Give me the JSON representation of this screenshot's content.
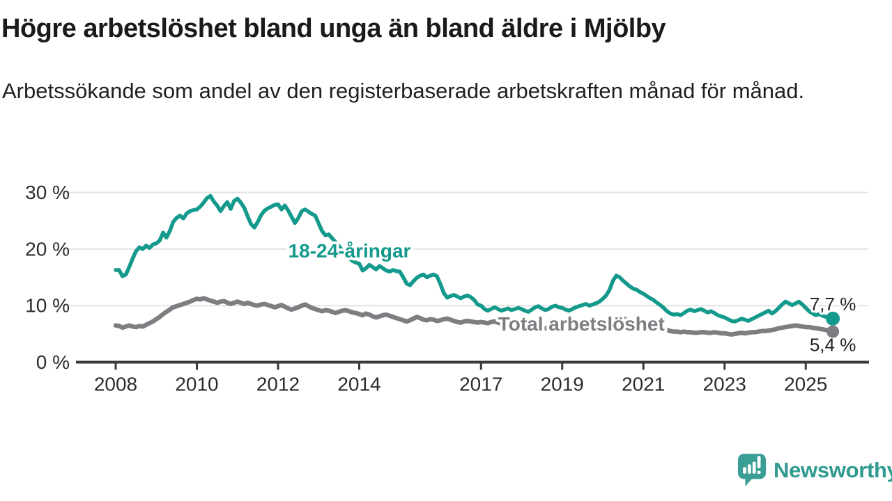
{
  "header": {
    "title": "Högre arbetslöshet bland unga än bland äldre i Mjölby",
    "subtitle": "Arbetssökande som andel av den registerbaserade arbetskraften månad för månad."
  },
  "chart_data": {
    "type": "line",
    "title": "Högre arbetslöshet bland unga än bland äldre i Mjölby",
    "x_start": "2008-01",
    "x_end": "2025-09",
    "frequency": "monthly",
    "y_unit": "%",
    "ylim": [
      0,
      31
    ],
    "grid": "horizontal",
    "x_ticks": [
      2008,
      2010,
      2012,
      2014,
      2017,
      2019,
      2021,
      2023,
      2025
    ],
    "y_ticks": [
      {
        "value": 30,
        "label": "30 %"
      },
      {
        "value": 20,
        "label": "20 %"
      },
      {
        "value": 10,
        "label": "10 %"
      },
      {
        "value": 0,
        "label": "0 %"
      }
    ],
    "series": [
      {
        "name": "Total arbetslöshet",
        "color": "#7e7d82",
        "label": {
          "text": "Total arbetslöshet",
          "x_year": 2017.42,
          "pct_baseline": 5.6
        },
        "end_value": 5.4,
        "end_label": "5,4 %",
        "end_label_side": "below",
        "values": [
          6.5,
          6.4,
          6.1,
          6.3,
          6.5,
          6.3,
          6.2,
          6.4,
          6.3,
          6.6,
          6.9,
          7.2,
          7.6,
          8.0,
          8.5,
          8.9,
          9.3,
          9.7,
          9.9,
          10.1,
          10.3,
          10.5,
          10.7,
          11.0,
          11.2,
          11.1,
          11.3,
          11.1,
          10.9,
          10.7,
          10.5,
          10.7,
          10.8,
          10.5,
          10.3,
          10.5,
          10.7,
          10.5,
          10.3,
          10.5,
          10.3,
          10.1,
          10.0,
          10.2,
          10.3,
          10.1,
          9.9,
          9.7,
          9.9,
          10.1,
          9.8,
          9.5,
          9.3,
          9.5,
          9.7,
          10.0,
          10.2,
          9.9,
          9.6,
          9.4,
          9.2,
          9.0,
          9.2,
          9.1,
          8.9,
          8.7,
          8.9,
          9.1,
          9.2,
          9.0,
          8.8,
          8.7,
          8.5,
          8.3,
          8.6,
          8.4,
          8.1,
          7.9,
          8.1,
          8.3,
          8.4,
          8.2,
          8.0,
          7.8,
          7.6,
          7.4,
          7.2,
          7.4,
          7.7,
          8.0,
          7.8,
          7.5,
          7.4,
          7.6,
          7.5,
          7.3,
          7.4,
          7.6,
          7.7,
          7.5,
          7.3,
          7.1,
          7.0,
          7.2,
          7.3,
          7.2,
          7.1,
          7.0,
          7.1,
          7.0,
          6.9,
          7.1,
          7.2,
          7.0,
          6.8,
          6.6,
          6.5,
          6.6,
          6.5,
          6.4,
          6.4,
          6.3,
          6.2,
          6.1,
          6.0,
          5.9,
          5.9,
          6.0,
          6.1,
          6.0,
          5.9,
          5.9,
          5.8,
          5.8,
          5.7,
          5.7,
          5.8,
          5.9,
          6.0,
          6.0,
          6.1,
          6.2,
          6.2,
          6.3,
          6.4,
          6.6,
          7.0,
          7.5,
          7.8,
          7.8,
          7.7,
          7.5,
          7.3,
          7.1,
          7.0,
          6.9,
          6.8,
          6.6,
          6.5,
          6.3,
          6.2,
          6.0,
          5.8,
          5.7,
          5.5,
          5.4,
          5.4,
          5.3,
          5.4,
          5.3,
          5.3,
          5.2,
          5.2,
          5.3,
          5.3,
          5.2,
          5.2,
          5.3,
          5.2,
          5.1,
          5.1,
          5.0,
          4.9,
          5.0,
          5.1,
          5.2,
          5.1,
          5.2,
          5.3,
          5.3,
          5.4,
          5.5,
          5.5,
          5.6,
          5.7,
          5.8,
          6.0,
          6.1,
          6.2,
          6.3,
          6.4,
          6.5,
          6.4,
          6.3,
          6.2,
          6.2,
          6.1,
          6.0,
          5.9,
          5.8,
          5.7,
          5.5,
          5.4
        ]
      },
      {
        "name": "18-24-åringar",
        "color": "#149a8c",
        "label": {
          "text": "18-24-åringar",
          "x_year": 2012.25,
          "pct_baseline": 18.5
        },
        "end_value": 7.7,
        "end_label": "7,7 %",
        "end_label_side": "above",
        "values": [
          16.3,
          16.3,
          15.2,
          15.5,
          16.8,
          18.3,
          19.6,
          20.3,
          20.0,
          20.6,
          20.2,
          20.8,
          21.0,
          21.5,
          22.9,
          22.0,
          23.2,
          24.8,
          25.5,
          25.9,
          25.4,
          26.3,
          26.7,
          26.9,
          27.0,
          27.5,
          28.2,
          29.0,
          29.4,
          28.4,
          27.7,
          26.7,
          27.6,
          28.3,
          27.1,
          28.5,
          28.9,
          28.2,
          27.3,
          25.8,
          24.4,
          23.8,
          24.8,
          26.0,
          26.8,
          27.2,
          27.5,
          27.8,
          27.9,
          27.0,
          27.7,
          26.8,
          25.7,
          24.6,
          25.5,
          26.7,
          27.0,
          26.6,
          26.2,
          25.9,
          24.5,
          23.2,
          22.4,
          22.6,
          21.9,
          21.2,
          20.5,
          19.7,
          19.0,
          18.4,
          17.9,
          17.6,
          17.4,
          16.2,
          16.6,
          17.2,
          16.8,
          16.4,
          17.0,
          16.6,
          16.2,
          16.0,
          16.3,
          16.1,
          16.0,
          15.0,
          13.9,
          13.6,
          14.3,
          14.9,
          15.3,
          15.5,
          15.0,
          15.3,
          15.5,
          15.2,
          13.8,
          12.2,
          11.4,
          11.7,
          11.9,
          11.6,
          11.3,
          11.6,
          11.8,
          11.5,
          11.0,
          10.2,
          10.0,
          9.4,
          9.1,
          9.4,
          9.7,
          9.4,
          9.1,
          9.3,
          9.5,
          9.2,
          9.4,
          9.6,
          9.4,
          9.1,
          8.9,
          9.3,
          9.7,
          9.9,
          9.5,
          9.2,
          9.4,
          9.8,
          10.0,
          9.7,
          9.6,
          9.3,
          9.1,
          9.4,
          9.7,
          9.9,
          10.1,
          10.3,
          10.0,
          10.2,
          10.4,
          10.7,
          11.2,
          11.8,
          12.8,
          14.4,
          15.3,
          15.0,
          14.4,
          13.9,
          13.4,
          13.0,
          12.8,
          12.4,
          12.1,
          11.7,
          11.3,
          11.0,
          10.5,
          10.1,
          9.6,
          9.0,
          8.6,
          8.4,
          8.5,
          8.3,
          8.7,
          9.1,
          9.3,
          9.0,
          9.2,
          9.4,
          9.1,
          8.8,
          9.0,
          8.7,
          8.3,
          8.1,
          7.9,
          7.6,
          7.3,
          7.2,
          7.4,
          7.7,
          7.5,
          7.3,
          7.6,
          7.9,
          8.2,
          8.5,
          8.8,
          9.1,
          8.6,
          9.0,
          9.6,
          10.2,
          10.7,
          10.4,
          10.1,
          10.4,
          10.7,
          10.2,
          9.6,
          9.0,
          8.6,
          8.3,
          8.5,
          8.2,
          8.0,
          8.0,
          7.7
        ]
      }
    ]
  },
  "footer": {
    "brand": "Newsworthy"
  },
  "colors": {
    "accent_teal": "#149a8c",
    "line_gray": "#7e7d82",
    "axis": "#3a3a3c",
    "grid": "#e2e2e2",
    "tick_text": "#2c2c2e",
    "logo_teal": "#3a9e94",
    "end_label_text": "#222222"
  }
}
